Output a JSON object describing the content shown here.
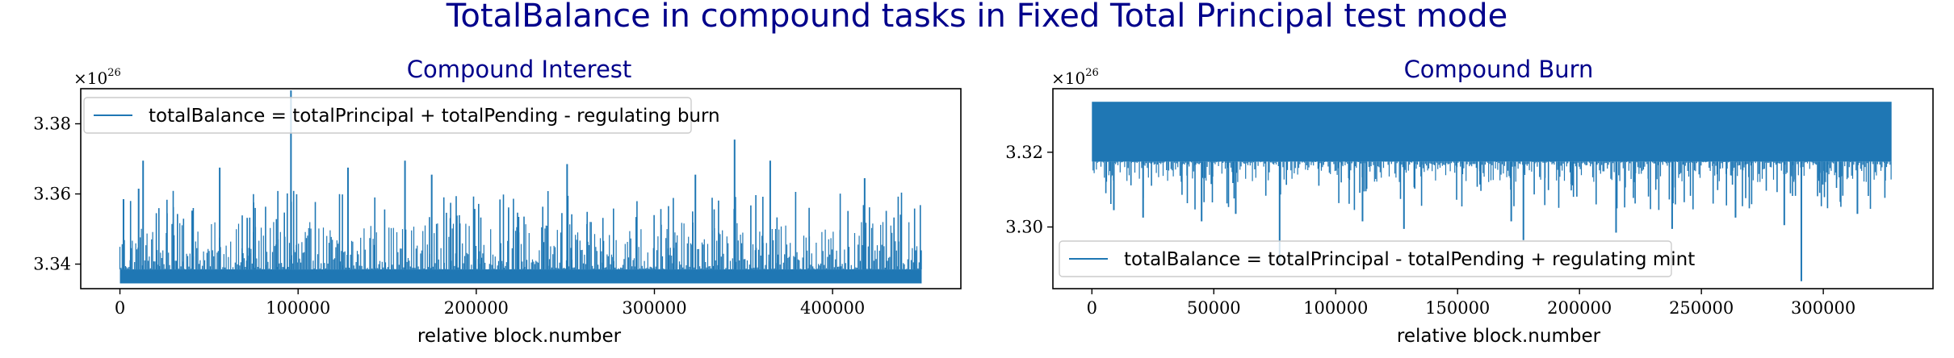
{
  "figure": {
    "suptitle": "TotalBalance in compound tasks in Fixed Total Principal test mode",
    "line_color": "#1f77b4",
    "title_color": "#00008b"
  },
  "chart_data": [
    {
      "type": "line",
      "title": "Compound Interest",
      "xlabel": "relative block.number",
      "ylabel": "",
      "axis_offset_base": "×10",
      "axis_offset_exp": "26",
      "x_ticks": [
        0,
        100000,
        200000,
        300000,
        400000
      ],
      "y_ticks": [
        3.34,
        3.36,
        3.38
      ],
      "xlim": [
        -22000,
        472000
      ],
      "ylim": [
        3.333,
        3.39
      ],
      "grid": false,
      "legend_position": "upper left",
      "series": [
        {
          "name": "totalBalance = totalPrincipal + totalPending - regulating burn",
          "x_range": [
            0,
            450000
          ],
          "y_floor": 3.3345,
          "y_dense_top": 3.3385,
          "y_typical_max": 3.352,
          "spikes": [
            {
              "x": 2000,
              "y": 3.3585
            },
            {
              "x": 10500,
              "y": 3.3615
            },
            {
              "x": 13000,
              "y": 3.3695
            },
            {
              "x": 56000,
              "y": 3.3675
            },
            {
              "x": 96000,
              "y": 3.3895
            },
            {
              "x": 128000,
              "y": 3.3675
            },
            {
              "x": 160000,
              "y": 3.3695
            },
            {
              "x": 175000,
              "y": 3.3655
            },
            {
              "x": 251000,
              "y": 3.3685
            },
            {
              "x": 323000,
              "y": 3.3655
            },
            {
              "x": 345000,
              "y": 3.3755
            },
            {
              "x": 365000,
              "y": 3.3695
            },
            {
              "x": 418000,
              "y": 3.3645
            }
          ]
        }
      ]
    },
    {
      "type": "line",
      "title": "Compound Burn",
      "xlabel": "relative block.number",
      "ylabel": "",
      "axis_offset_base": "×10",
      "axis_offset_exp": "26",
      "x_ticks": [
        0,
        50000,
        100000,
        150000,
        200000,
        250000,
        300000
      ],
      "y_ticks": [
        3.3,
        3.32
      ],
      "xlim": [
        -16000,
        345000
      ],
      "ylim": [
        3.2835,
        3.337
      ],
      "grid": false,
      "legend_position": "lower left",
      "series": [
        {
          "name": "totalBalance = totalPrincipal - totalPending + regulating mint",
          "x_range": [
            0,
            328000
          ],
          "y_ceiling": 3.3335,
          "y_dense_bottom": 3.3175,
          "y_typical_min": 3.312,
          "dips": [
            {
              "x": 9000,
              "y": 3.3045
            },
            {
              "x": 21000,
              "y": 3.3025
            },
            {
              "x": 45000,
              "y": 3.3015
            },
            {
              "x": 59000,
              "y": 3.3035
            },
            {
              "x": 77000,
              "y": 3.2895
            },
            {
              "x": 111000,
              "y": 3.3015
            },
            {
              "x": 128000,
              "y": 3.2995
            },
            {
              "x": 172000,
              "y": 3.3015
            },
            {
              "x": 177000,
              "y": 3.2965
            },
            {
              "x": 215000,
              "y": 3.2985
            },
            {
              "x": 238000,
              "y": 3.2995
            },
            {
              "x": 264000,
              "y": 3.3025
            },
            {
              "x": 284000,
              "y": 3.3005
            },
            {
              "x": 291000,
              "y": 3.2855
            },
            {
              "x": 314000,
              "y": 3.3035
            }
          ]
        }
      ]
    }
  ]
}
